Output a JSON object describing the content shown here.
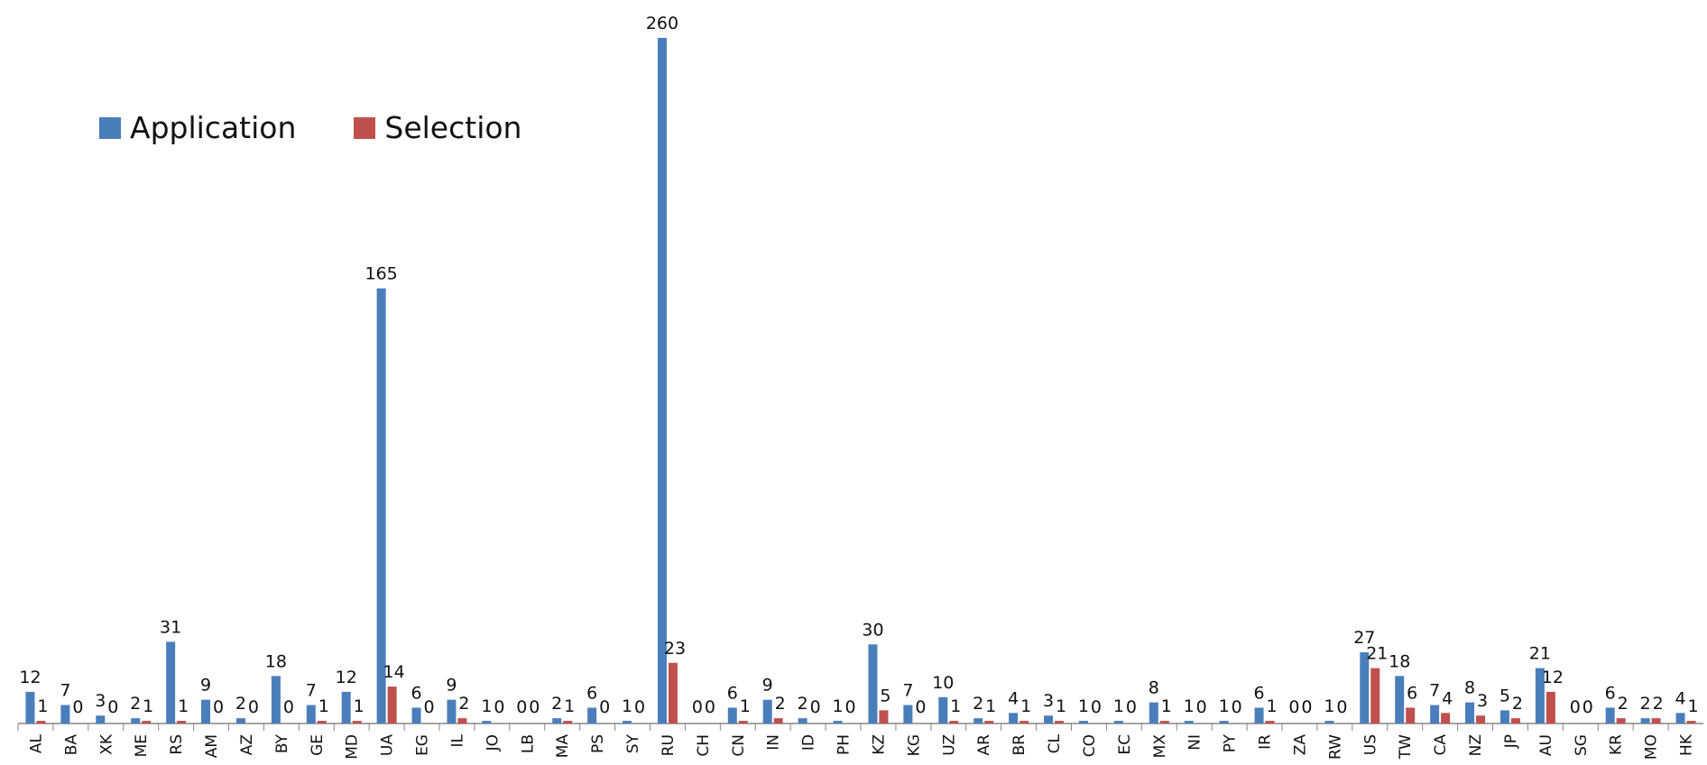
{
  "chart_data": {
    "type": "bar",
    "categories": [
      "AL",
      "BA",
      "XK",
      "ME",
      "RS",
      "AM",
      "AZ",
      "BY",
      "GE",
      "MD",
      "UA",
      "EG",
      "IL",
      "JO",
      "LB",
      "MA",
      "PS",
      "SY",
      "RU",
      "CH",
      "CN",
      "IN",
      "ID",
      "PH",
      "KZ",
      "KG",
      "UZ",
      "AR",
      "BR",
      "CL",
      "CO",
      "EC",
      "MX",
      "NI",
      "PY",
      "IR",
      "ZA",
      "RW",
      "US",
      "TW",
      "CA",
      "NZ",
      "JP",
      "AU",
      "SG",
      "KR",
      "MO",
      "HK"
    ],
    "series": [
      {
        "name": "Application",
        "color": "#4a7ebb",
        "values": [
          12,
          7,
          3,
          2,
          31,
          9,
          2,
          18,
          7,
          12,
          165,
          6,
          9,
          1,
          0,
          2,
          6,
          1,
          260,
          0,
          6,
          9,
          2,
          1,
          30,
          7,
          10,
          2,
          4,
          3,
          1,
          1,
          8,
          1,
          1,
          6,
          0,
          1,
          27,
          18,
          7,
          8,
          5,
          21,
          0,
          6,
          2,
          4
        ]
      },
      {
        "name": "Selection",
        "color": "#c0504d",
        "values": [
          1,
          0,
          0,
          1,
          1,
          0,
          0,
          0,
          1,
          1,
          14,
          0,
          2,
          0,
          0,
          1,
          0,
          0,
          23,
          0,
          1,
          2,
          0,
          0,
          5,
          0,
          1,
          1,
          1,
          1,
          0,
          0,
          1,
          0,
          0,
          1,
          0,
          0,
          21,
          6,
          4,
          3,
          2,
          12,
          0,
          2,
          2,
          1
        ]
      }
    ],
    "ylim": [
      0,
      260
    ],
    "grid": false,
    "legend_position": "top-left"
  }
}
